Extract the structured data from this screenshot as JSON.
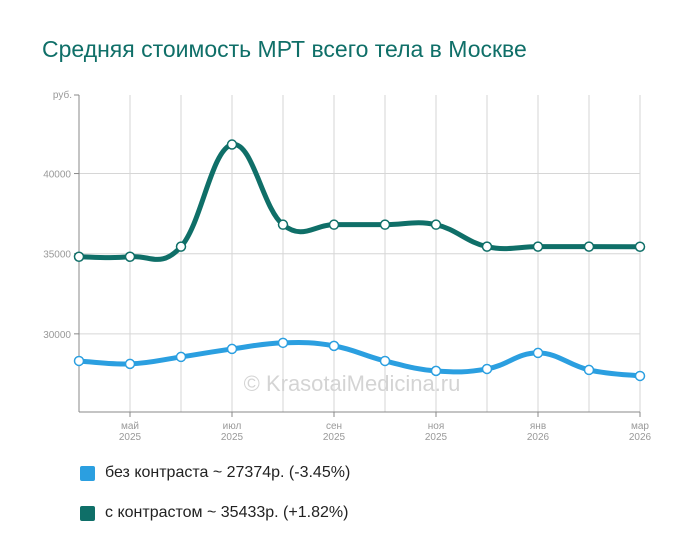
{
  "chart_data": {
    "type": "line",
    "title": "Средняя стоимость МРТ всего тела в Москве",
    "ylabel": "руб.",
    "xlabel": "",
    "ylim": [
      25125,
      44900
    ],
    "yticks": [
      30000,
      35000,
      40000
    ],
    "ytick_labels": [
      "30000",
      "35000",
      "40000"
    ],
    "x": [
      "апр 2025",
      "май 2025",
      "июн 2025",
      "июл 2025",
      "авг 2025",
      "сен 2025",
      "окт 2025",
      "ноя 2025",
      "дек 2025",
      "янв 2026",
      "фев 2026",
      "мар 2026"
    ],
    "xtick_labels": [
      {
        "index": 1,
        "month": "май",
        "year": "2025"
      },
      {
        "index": 3,
        "month": "июл",
        "year": "2025"
      },
      {
        "index": 5,
        "month": "сен",
        "year": "2025"
      },
      {
        "index": 7,
        "month": "ноя",
        "year": "2025"
      },
      {
        "index": 9,
        "month": "янв",
        "year": "2026"
      },
      {
        "index": 11,
        "month": "мар",
        "year": "2026"
      }
    ],
    "grid": true,
    "series": [
      {
        "name": "без контраста",
        "color": "#2b9fe0",
        "values": [
          28310,
          28125,
          28560,
          29060,
          29440,
          29250,
          28310,
          27690,
          27810,
          28810,
          27750,
          27374
        ]
      },
      {
        "name": "с контрастом",
        "color": "#0f6f68",
        "values": [
          34810,
          34810,
          35440,
          41810,
          36810,
          36810,
          36810,
          36810,
          35440,
          35440,
          35440,
          35433
        ]
      }
    ],
    "legend": [
      {
        "label": "без контраста ~ 27374р. (-3.45%)",
        "color": "#2b9fe0"
      },
      {
        "label": "с контрастом ~ 35433р. (+1.82%)",
        "color": "#0f6f68"
      }
    ],
    "legend_position": "bottom-left",
    "watermark": "© KrasotaiMedicina.ru"
  }
}
